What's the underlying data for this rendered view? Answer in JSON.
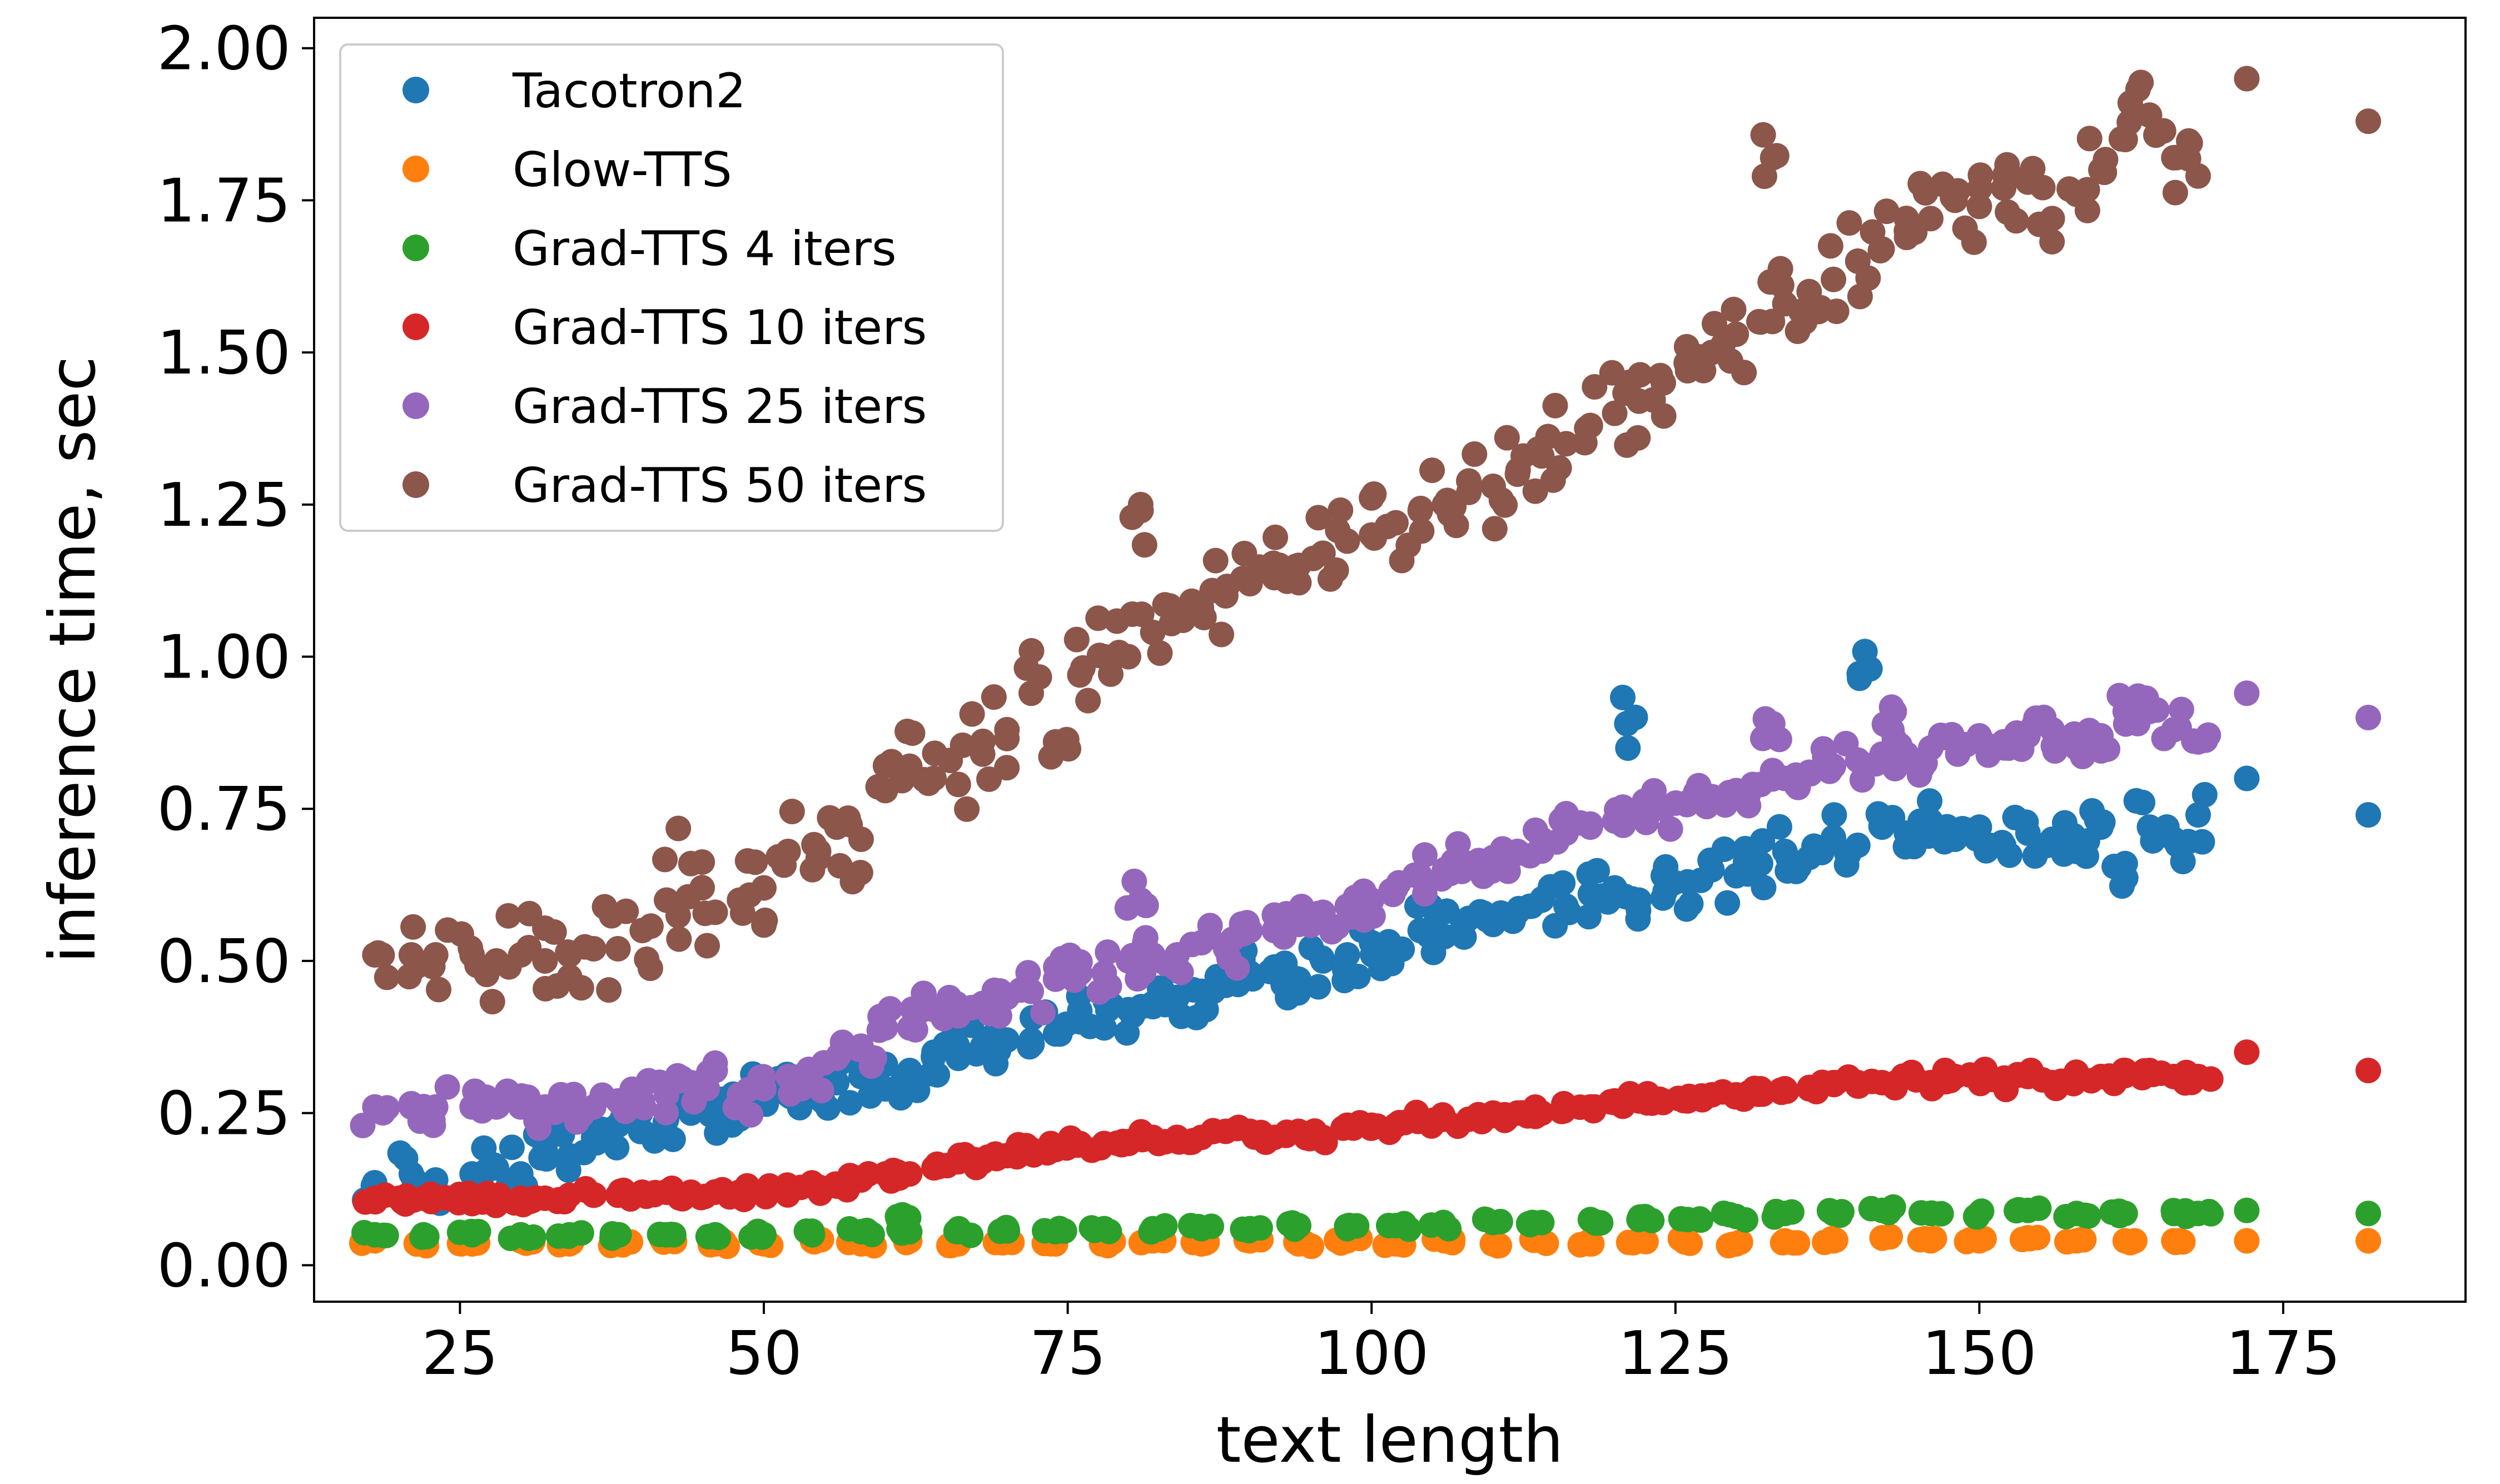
{
  "chart_data": {
    "type": "scatter",
    "title": "",
    "xlabel": "text length",
    "ylabel": "inference time, sec",
    "xlim": [
      13,
      190
    ],
    "ylim": [
      -0.06,
      2.05
    ],
    "xticks": [
      25,
      50,
      75,
      100,
      125,
      150,
      175
    ],
    "xtick_labels": [
      "25",
      "50",
      "75",
      "100",
      "125",
      "150",
      "175"
    ],
    "yticks": [
      0,
      0.25,
      0.5,
      0.75,
      1.0,
      1.25,
      1.5,
      1.75,
      2.0
    ],
    "ytick_labels": [
      "0.00",
      "0.25",
      "0.50",
      "0.75",
      "1.00",
      "1.25",
      "1.50",
      "1.75",
      "2.00"
    ],
    "grid": false,
    "legend_position": "top-left",
    "series": [
      {
        "name": "Tacotron2",
        "color": "#1f77b4",
        "x": [
          18,
          21,
          23,
          26,
          28,
          30,
          32,
          34,
          36,
          38,
          40,
          42,
          44,
          46,
          48,
          50,
          52,
          54,
          56,
          58,
          60,
          62,
          64,
          66,
          68,
          70,
          72,
          74,
          76,
          78,
          80,
          82,
          84,
          86,
          88,
          90,
          92,
          94,
          96,
          98,
          100,
          102,
          104,
          106,
          108,
          110,
          112,
          114,
          116,
          118,
          120,
          121,
          122,
          124,
          126,
          128,
          130,
          132,
          134,
          136,
          138,
          140,
          141,
          142,
          144,
          146,
          148,
          150,
          152,
          154,
          156,
          158,
          160,
          162,
          164,
          166,
          168,
          172,
          182
        ],
        "y": [
          0.13,
          0.15,
          0.14,
          0.15,
          0.16,
          0.15,
          0.19,
          0.18,
          0.21,
          0.23,
          0.22,
          0.24,
          0.25,
          0.26,
          0.24,
          0.27,
          0.28,
          0.29,
          0.3,
          0.31,
          0.33,
          0.32,
          0.35,
          0.34,
          0.36,
          0.37,
          0.37,
          0.38,
          0.4,
          0.39,
          0.42,
          0.43,
          0.44,
          0.45,
          0.46,
          0.48,
          0.49,
          0.47,
          0.5,
          0.51,
          0.53,
          0.52,
          0.55,
          0.54,
          0.57,
          0.56,
          0.58,
          0.6,
          0.59,
          0.61,
          0.62,
          0.89,
          0.6,
          0.64,
          0.63,
          0.65,
          0.64,
          0.66,
          0.68,
          0.67,
          0.7,
          0.69,
          0.98,
          0.72,
          0.71,
          0.73,
          0.7,
          0.72,
          0.69,
          0.71,
          0.7,
          0.68,
          0.72,
          0.66,
          0.72,
          0.7,
          0.74,
          0.8,
          0.74
        ]
      },
      {
        "name": "Glow-TTS",
        "color": "#ff7f0e",
        "x": [
          18,
          22,
          26,
          30,
          34,
          38,
          42,
          46,
          50,
          54,
          58,
          62,
          66,
          70,
          74,
          78,
          82,
          86,
          90,
          94,
          98,
          102,
          106,
          110,
          114,
          118,
          122,
          126,
          130,
          134,
          138,
          142,
          146,
          150,
          154,
          158,
          162,
          166,
          172,
          182
        ],
        "y": [
          0.04,
          0.035,
          0.035,
          0.04,
          0.035,
          0.035,
          0.04,
          0.035,
          0.035,
          0.04,
          0.035,
          0.04,
          0.035,
          0.04,
          0.035,
          0.035,
          0.04,
          0.035,
          0.04,
          0.035,
          0.04,
          0.035,
          0.04,
          0.035,
          0.04,
          0.035,
          0.04,
          0.04,
          0.035,
          0.04,
          0.04,
          0.045,
          0.04,
          0.04,
          0.045,
          0.04,
          0.04,
          0.04,
          0.04,
          0.04
        ]
      },
      {
        "name": "Grad-TTS 4 iters",
        "color": "#2ca02c",
        "x": [
          18,
          22,
          26,
          30,
          34,
          38,
          42,
          46,
          50,
          54,
          58,
          61,
          62,
          66,
          70,
          74,
          78,
          82,
          86,
          90,
          94,
          98,
          102,
          106,
          110,
          114,
          118,
          122,
          126,
          130,
          134,
          138,
          142,
          146,
          150,
          154,
          158,
          162,
          166,
          168,
          172,
          182
        ],
        "y": [
          0.05,
          0.05,
          0.05,
          0.05,
          0.05,
          0.05,
          0.05,
          0.05,
          0.05,
          0.05,
          0.055,
          0.08,
          0.055,
          0.055,
          0.06,
          0.055,
          0.06,
          0.06,
          0.06,
          0.06,
          0.065,
          0.06,
          0.065,
          0.065,
          0.07,
          0.07,
          0.075,
          0.075,
          0.075,
          0.08,
          0.085,
          0.085,
          0.09,
          0.085,
          0.085,
          0.09,
          0.085,
          0.085,
          0.085,
          0.085,
          0.09,
          0.085
        ]
      },
      {
        "name": "Grad-TTS 10 iters",
        "color": "#d62728",
        "x": [
          18,
          20,
          22,
          24,
          26,
          28,
          30,
          32,
          34,
          36,
          38,
          40,
          42,
          44,
          46,
          48,
          50,
          52,
          54,
          56,
          58,
          60,
          62,
          64,
          66,
          68,
          70,
          72,
          74,
          76,
          78,
          80,
          82,
          84,
          86,
          88,
          90,
          92,
          94,
          96,
          98,
          100,
          102,
          104,
          106,
          108,
          110,
          112,
          114,
          116,
          118,
          120,
          122,
          124,
          126,
          128,
          130,
          132,
          134,
          136,
          138,
          140,
          142,
          144,
          146,
          148,
          150,
          152,
          154,
          156,
          158,
          160,
          162,
          164,
          166,
          168,
          172,
          182
        ],
        "y": [
          0.11,
          0.11,
          0.11,
          0.11,
          0.11,
          0.11,
          0.11,
          0.11,
          0.115,
          0.115,
          0.115,
          0.12,
          0.12,
          0.12,
          0.12,
          0.12,
          0.12,
          0.125,
          0.13,
          0.13,
          0.14,
          0.15,
          0.15,
          0.16,
          0.17,
          0.17,
          0.18,
          0.19,
          0.19,
          0.2,
          0.2,
          0.2,
          0.21,
          0.21,
          0.21,
          0.22,
          0.22,
          0.21,
          0.22,
          0.21,
          0.23,
          0.23,
          0.23,
          0.24,
          0.24,
          0.24,
          0.25,
          0.25,
          0.25,
          0.26,
          0.26,
          0.27,
          0.27,
          0.27,
          0.27,
          0.28,
          0.28,
          0.29,
          0.29,
          0.29,
          0.3,
          0.3,
          0.3,
          0.31,
          0.3,
          0.31,
          0.31,
          0.3,
          0.31,
          0.3,
          0.31,
          0.31,
          0.32,
          0.32,
          0.31,
          0.31,
          0.35,
          0.32
        ]
      },
      {
        "name": "Grad-TTS 25 iters",
        "color": "#9467bd",
        "x": [
          18,
          21,
          23,
          26,
          28,
          30,
          32,
          34,
          36,
          38,
          40,
          42,
          44,
          46,
          48,
          50,
          52,
          54,
          56,
          58,
          60,
          62,
          64,
          66,
          68,
          70,
          72,
          74,
          76,
          78,
          80,
          81,
          82,
          84,
          86,
          88,
          90,
          92,
          94,
          96,
          98,
          100,
          102,
          104,
          106,
          108,
          110,
          112,
          114,
          116,
          118,
          120,
          122,
          124,
          126,
          128,
          130,
          132,
          133,
          134,
          136,
          138,
          140,
          142,
          143,
          144,
          146,
          148,
          150,
          152,
          154,
          156,
          158,
          160,
          162,
          164,
          166,
          168,
          172,
          182
        ],
        "y": [
          0.26,
          0.26,
          0.26,
          0.26,
          0.26,
          0.26,
          0.26,
          0.26,
          0.26,
          0.27,
          0.27,
          0.28,
          0.3,
          0.32,
          0.28,
          0.29,
          0.31,
          0.32,
          0.34,
          0.36,
          0.39,
          0.39,
          0.42,
          0.41,
          0.43,
          0.44,
          0.45,
          0.47,
          0.48,
          0.48,
          0.5,
          0.6,
          0.51,
          0.51,
          0.53,
          0.52,
          0.55,
          0.55,
          0.56,
          0.58,
          0.59,
          0.6,
          0.62,
          0.64,
          0.65,
          0.66,
          0.67,
          0.68,
          0.7,
          0.71,
          0.72,
          0.73,
          0.74,
          0.75,
          0.76,
          0.77,
          0.78,
          0.79,
          0.89,
          0.8,
          0.81,
          0.82,
          0.83,
          0.84,
          0.91,
          0.84,
          0.85,
          0.86,
          0.87,
          0.86,
          0.87,
          0.88,
          0.85,
          0.87,
          0.91,
          0.91,
          0.88,
          0.86,
          0.94,
          0.9
        ]
      },
      {
        "name": "Grad-TTS 50 iters",
        "color": "#8c564b",
        "x": [
          18,
          21,
          23,
          26,
          28,
          30,
          32,
          34,
          36,
          38,
          40,
          42,
          44,
          46,
          48,
          50,
          52,
          54,
          56,
          58,
          60,
          62,
          64,
          66,
          68,
          70,
          72,
          74,
          76,
          78,
          80,
          81,
          82,
          84,
          86,
          88,
          90,
          92,
          94,
          96,
          98,
          100,
          102,
          104,
          106,
          108,
          110,
          112,
          114,
          116,
          118,
          120,
          122,
          124,
          126,
          128,
          130,
          132,
          133,
          134,
          136,
          138,
          140,
          142,
          144,
          146,
          148,
          150,
          152,
          154,
          156,
          158,
          160,
          162,
          164,
          166,
          168,
          172,
          182
        ],
        "y": [
          0.51,
          0.51,
          0.51,
          0.51,
          0.5,
          0.51,
          0.5,
          0.51,
          0.52,
          0.52,
          0.55,
          0.6,
          0.66,
          0.58,
          0.6,
          0.62,
          0.68,
          0.65,
          0.72,
          0.7,
          0.78,
          0.82,
          0.8,
          0.79,
          0.84,
          0.88,
          0.94,
          0.86,
          0.97,
          1.0,
          1.0,
          1.25,
          1.04,
          1.07,
          1.08,
          1.1,
          1.12,
          1.13,
          1.15,
          1.17,
          1.19,
          1.2,
          1.22,
          1.24,
          1.25,
          1.27,
          1.28,
          1.3,
          1.33,
          1.35,
          1.38,
          1.4,
          1.42,
          1.45,
          1.47,
          1.5,
          1.53,
          1.55,
          1.82,
          1.58,
          1.6,
          1.62,
          1.65,
          1.67,
          1.7,
          1.72,
          1.75,
          1.74,
          1.77,
          1.78,
          1.72,
          1.76,
          1.8,
          1.85,
          1.89,
          1.82,
          1.79,
          1.95,
          1.88
        ]
      }
    ]
  }
}
